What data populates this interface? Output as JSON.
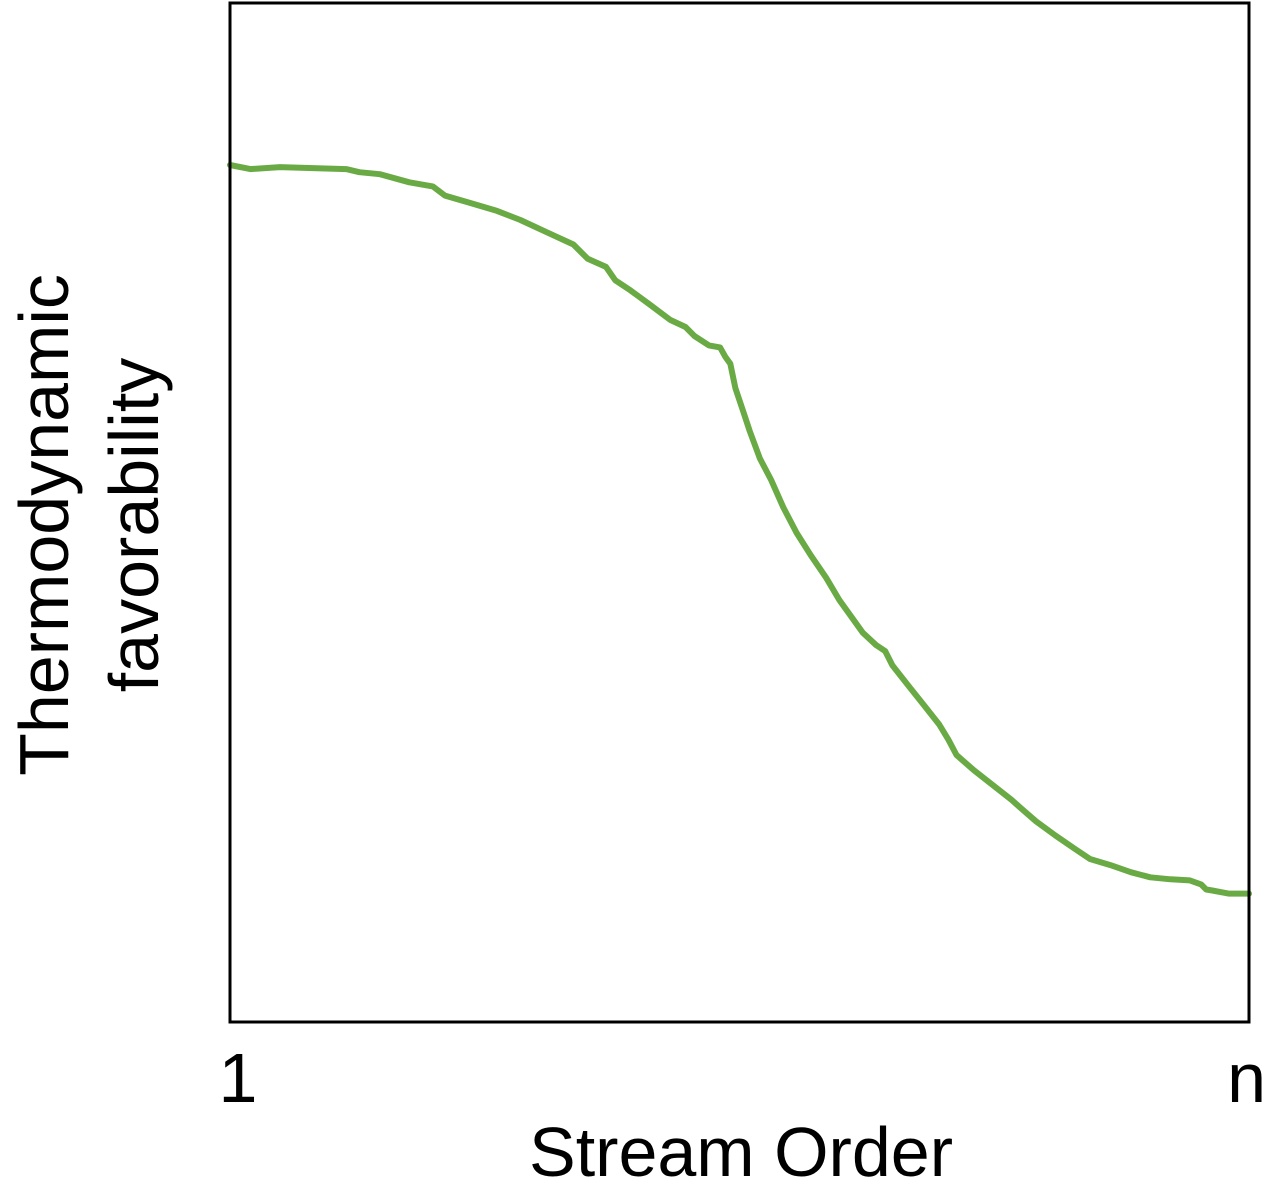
{
  "chart_data": {
    "type": "line",
    "title": "",
    "xlabel": "Stream Order",
    "ylabel_lines": [
      "Thermodynamic",
      "favorability"
    ],
    "x_tick_labels": [
      {
        "x": 0,
        "label": "1"
      },
      {
        "x": 1,
        "label": "n"
      }
    ],
    "xlim": [
      0,
      1
    ],
    "ylim": [
      0,
      1
    ],
    "grid": false,
    "legend": "none",
    "series": [
      {
        "color": "#6aaa45",
        "points": [
          [
            0.0,
            0.841
          ],
          [
            0.02,
            0.837
          ],
          [
            0.049,
            0.839
          ],
          [
            0.114,
            0.837
          ],
          [
            0.127,
            0.834
          ],
          [
            0.147,
            0.832
          ],
          [
            0.176,
            0.824
          ],
          [
            0.199,
            0.82
          ],
          [
            0.211,
            0.811
          ],
          [
            0.235,
            0.804
          ],
          [
            0.262,
            0.796
          ],
          [
            0.285,
            0.787
          ],
          [
            0.311,
            0.775
          ],
          [
            0.337,
            0.763
          ],
          [
            0.351,
            0.749
          ],
          [
            0.369,
            0.741
          ],
          [
            0.378,
            0.728
          ],
          [
            0.393,
            0.718
          ],
          [
            0.412,
            0.704
          ],
          [
            0.432,
            0.689
          ],
          [
            0.447,
            0.682
          ],
          [
            0.456,
            0.673
          ],
          [
            0.47,
            0.664
          ],
          [
            0.481,
            0.662
          ],
          [
            0.486,
            0.653
          ],
          [
            0.491,
            0.646
          ],
          [
            0.496,
            0.622
          ],
          [
            0.503,
            0.601
          ],
          [
            0.51,
            0.58
          ],
          [
            0.52,
            0.553
          ],
          [
            0.531,
            0.532
          ],
          [
            0.543,
            0.505
          ],
          [
            0.556,
            0.48
          ],
          [
            0.57,
            0.458
          ],
          [
            0.585,
            0.436
          ],
          [
            0.598,
            0.414
          ],
          [
            0.611,
            0.396
          ],
          [
            0.621,
            0.382
          ],
          [
            0.634,
            0.37
          ],
          [
            0.643,
            0.364
          ],
          [
            0.65,
            0.35
          ],
          [
            0.665,
            0.331
          ],
          [
            0.681,
            0.311
          ],
          [
            0.696,
            0.292
          ],
          [
            0.705,
            0.277
          ],
          [
            0.713,
            0.262
          ],
          [
            0.73,
            0.247
          ],
          [
            0.748,
            0.233
          ],
          [
            0.767,
            0.218
          ],
          [
            0.776,
            0.21
          ],
          [
            0.791,
            0.197
          ],
          [
            0.81,
            0.183
          ],
          [
            0.829,
            0.17
          ],
          [
            0.844,
            0.16
          ],
          [
            0.864,
            0.154
          ],
          [
            0.884,
            0.147
          ],
          [
            0.903,
            0.142
          ],
          [
            0.923,
            0.14
          ],
          [
            0.942,
            0.139
          ],
          [
            0.953,
            0.135
          ],
          [
            0.958,
            0.13
          ],
          [
            0.964,
            0.129
          ],
          [
            0.98,
            0.126
          ],
          [
            1.0,
            0.126
          ]
        ]
      }
    ]
  }
}
